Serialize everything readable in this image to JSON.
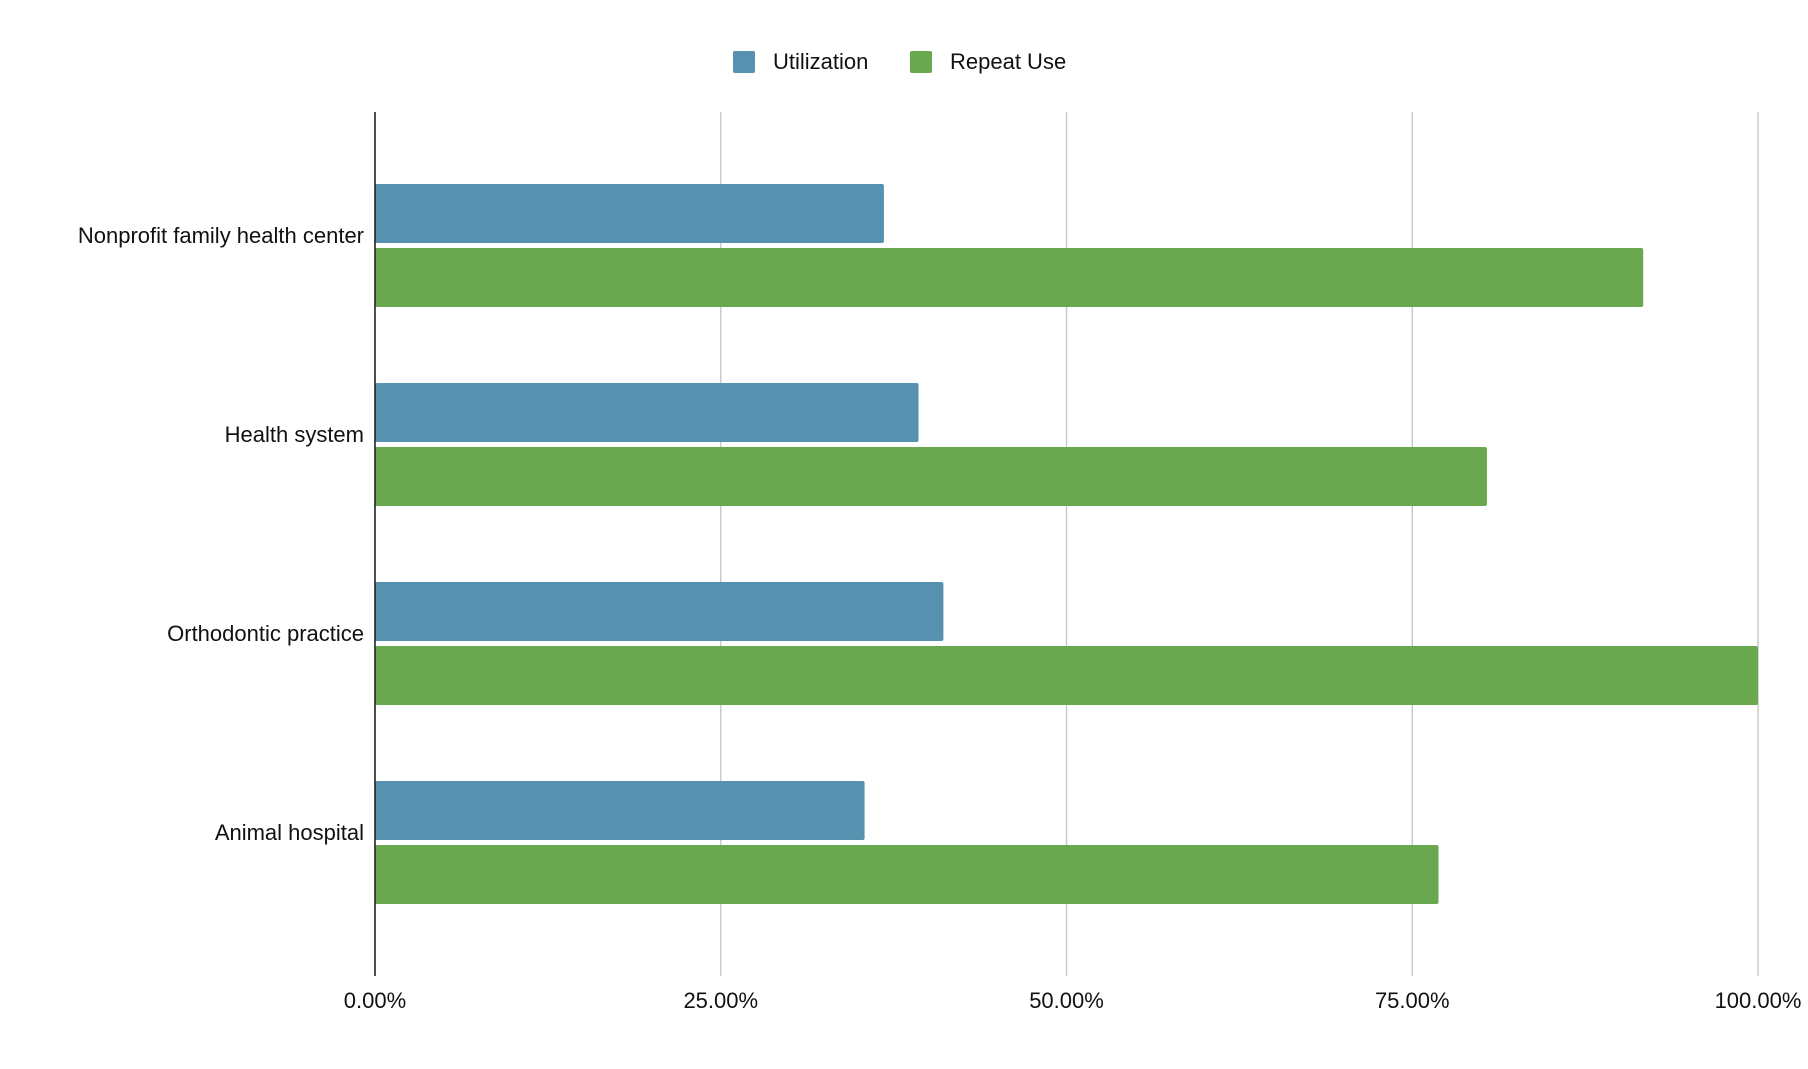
{
  "chart_data": {
    "type": "bar",
    "orientation": "horizontal",
    "categories": [
      "Nonprofit family health center",
      "Health system",
      "Orthodontic practice",
      "Animal hospital"
    ],
    "series": [
      {
        "name": "Utilization",
        "color": "#5791b0",
        "values": [
          36.8,
          39.3,
          41.1,
          35.4
        ]
      },
      {
        "name": "Repeat Use",
        "color": "#6aa84f",
        "values": [
          91.7,
          80.4,
          100.0,
          76.9
        ]
      }
    ],
    "xlim": [
      0,
      100
    ],
    "ticks": [
      0,
      25,
      50,
      75,
      100
    ],
    "tick_labels": [
      "0.00%",
      "25.00%",
      "50.00%",
      "75.00%",
      "100.00%"
    ],
    "legend_position": "top-center",
    "grid": true
  }
}
